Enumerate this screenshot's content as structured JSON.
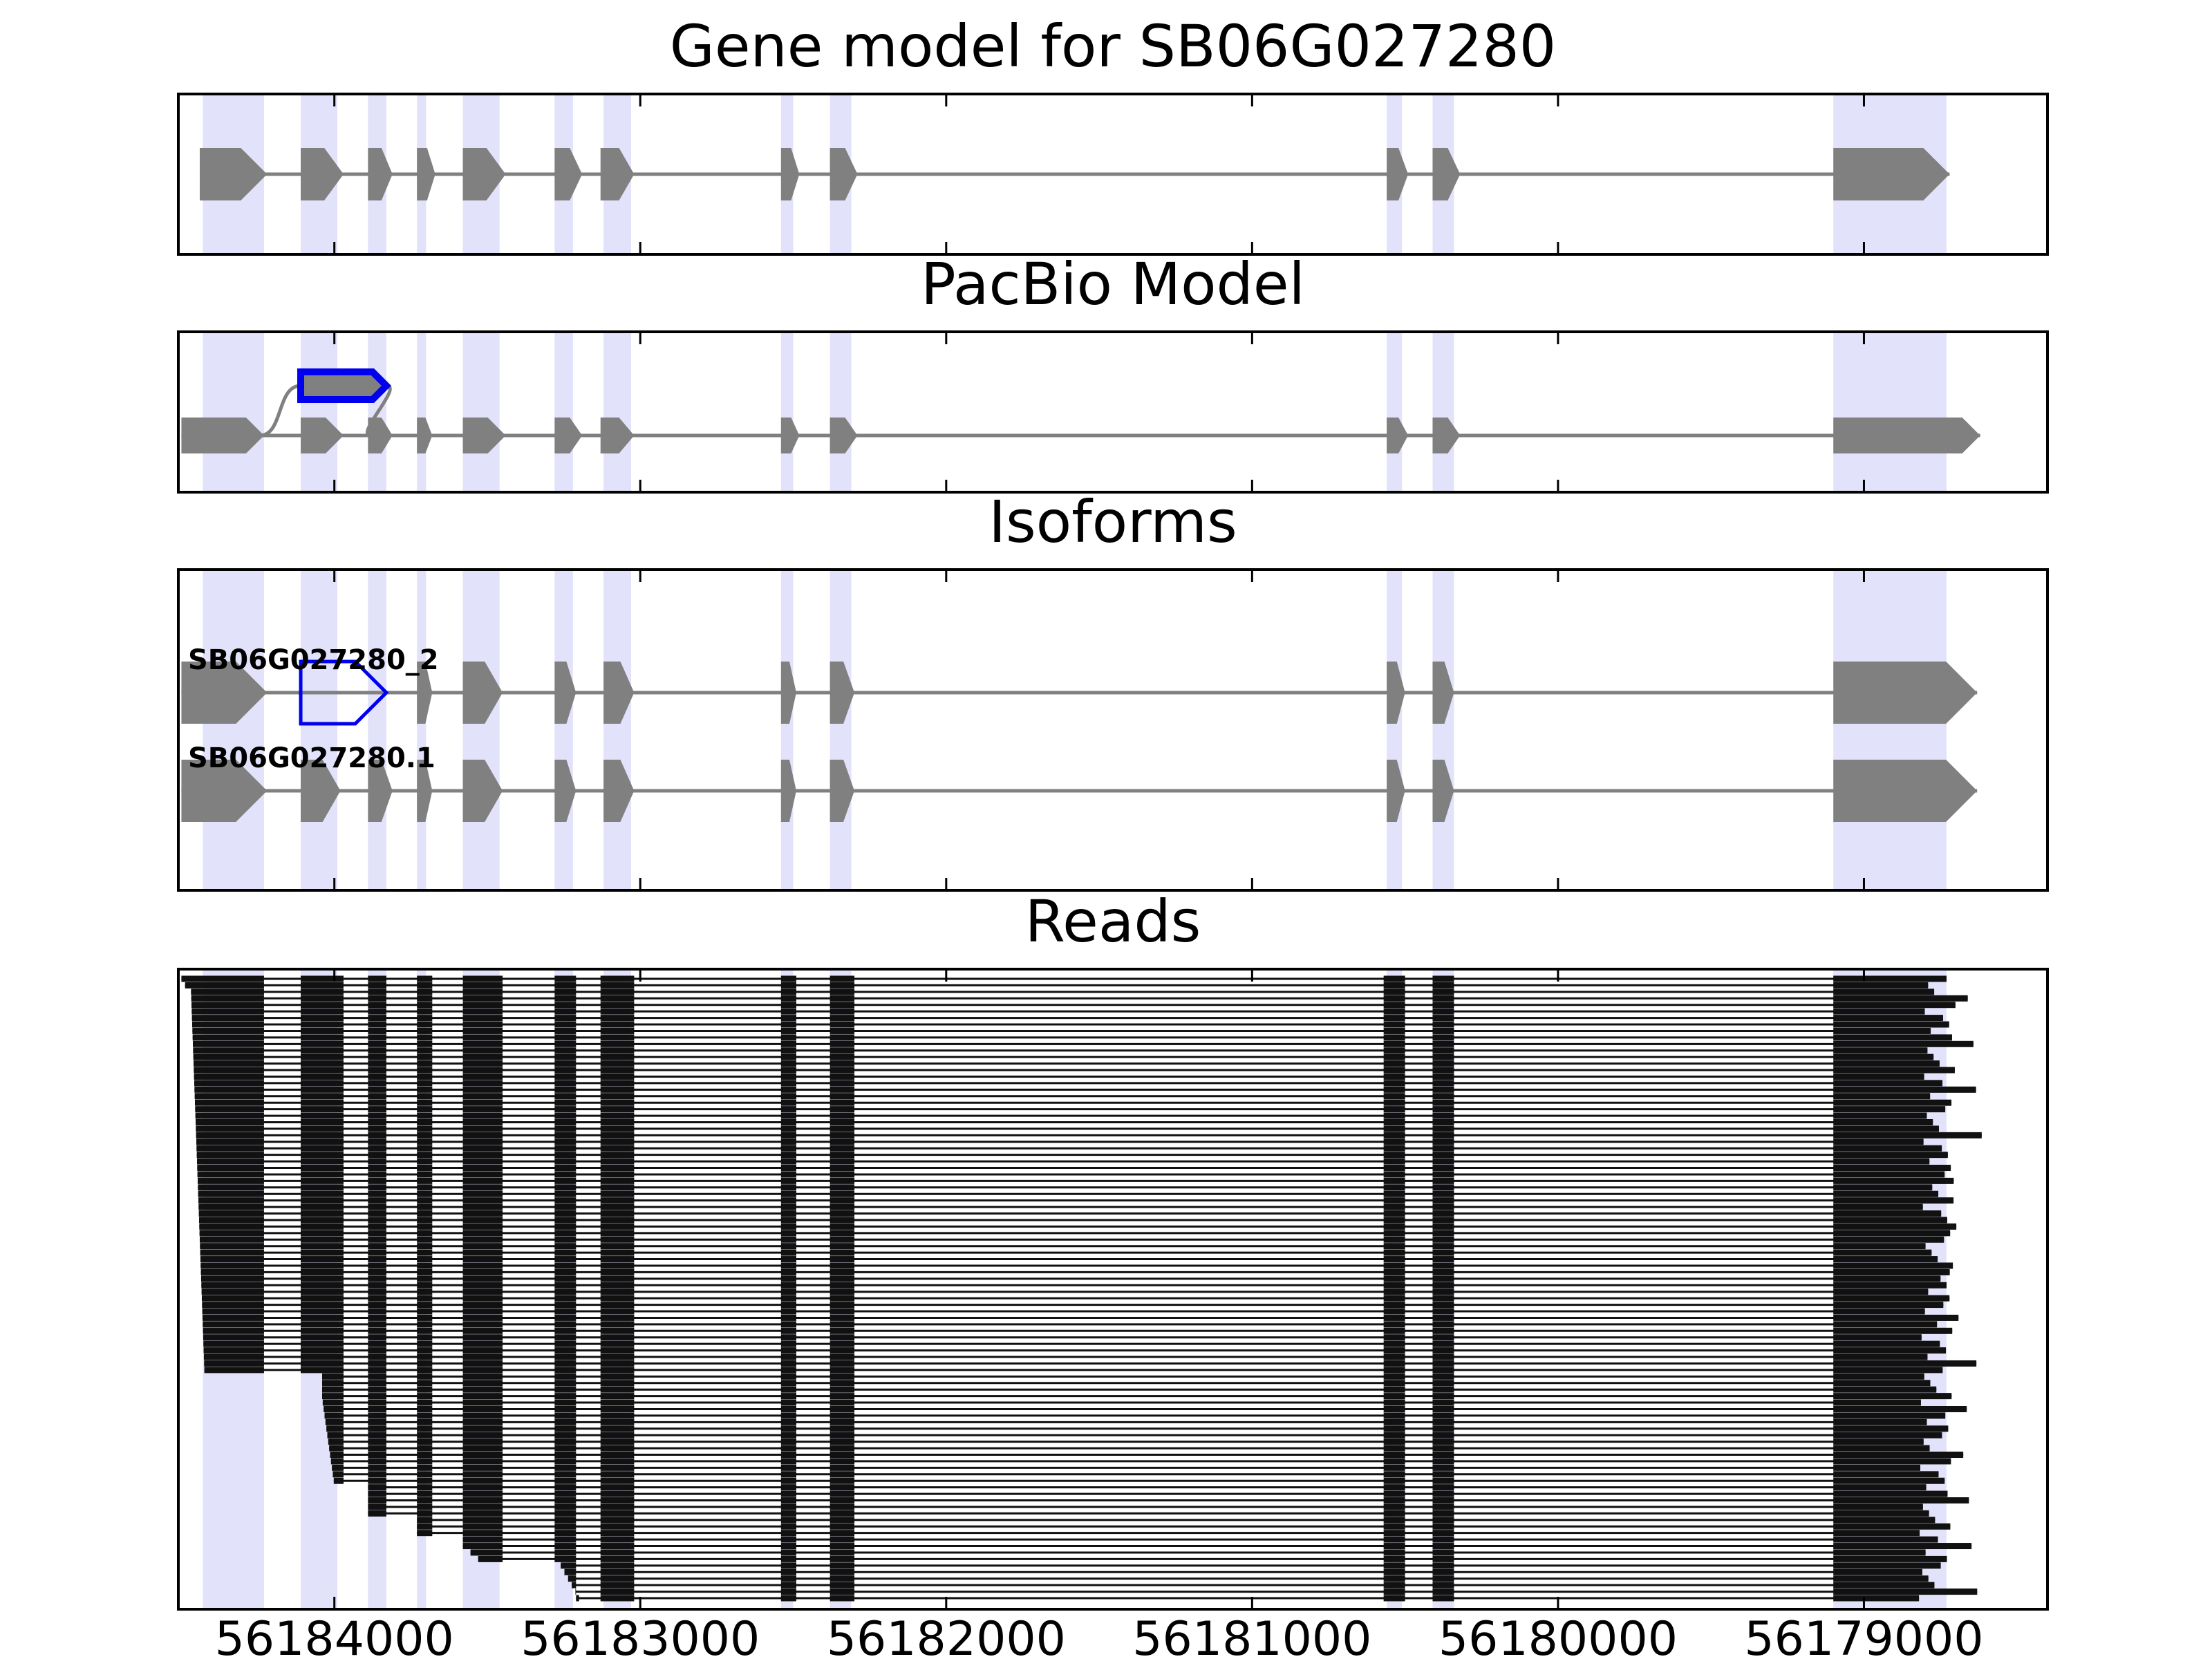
{
  "chart_data": {
    "type": "gene-track",
    "panels": [
      {
        "id": "gene-model",
        "title": "Gene model for SB06G027280"
      },
      {
        "id": "pacbio",
        "title": "PacBio Model"
      },
      {
        "id": "isoforms",
        "title": "Isoforms"
      },
      {
        "id": "reads",
        "title": "Reads"
      }
    ],
    "x_axis": {
      "direction": "descending",
      "xlim": [
        56184510,
        56178400
      ],
      "ticks": [
        56184000,
        56183000,
        56182000,
        56181000,
        56180000,
        56179000
      ],
      "tick_labels": [
        "56184000",
        "56183000",
        "56182000",
        "56181000",
        "56180000",
        "56179000"
      ]
    },
    "exon_regions": [
      [
        56184430,
        56184230
      ],
      [
        56184110,
        56183990
      ],
      [
        56183890,
        56183830
      ],
      [
        56183730,
        56183700
      ],
      [
        56183580,
        56183460
      ],
      [
        56183280,
        56183220
      ],
      [
        56183120,
        56183030
      ],
      [
        56182540,
        56182500
      ],
      [
        56182380,
        56182310
      ],
      [
        56180560,
        56180510
      ],
      [
        56180410,
        56180340
      ],
      [
        56179100,
        56178730
      ]
    ],
    "gene_model": {
      "exons": [
        [
          56184440,
          56184220
        ],
        [
          56184110,
          56183970
        ],
        [
          56183890,
          56183810
        ],
        [
          56183730,
          56183670
        ],
        [
          56183580,
          56183440
        ],
        [
          56183280,
          56183190
        ],
        [
          56183130,
          56183020
        ],
        [
          56182540,
          56182480
        ],
        [
          56182380,
          56182290
        ],
        [
          56180560,
          56180490
        ],
        [
          56180410,
          56180320
        ],
        [
          56179100,
          56178720
        ]
      ]
    },
    "pacbio_model": {
      "exons": [
        [
          56184500,
          56184230
        ],
        [
          56184110,
          56183970
        ],
        [
          56183890,
          56183810
        ],
        [
          56183730,
          56183680
        ],
        [
          56183580,
          56183440
        ],
        [
          56183280,
          56183190
        ],
        [
          56183130,
          56183020
        ],
        [
          56182540,
          56182480
        ],
        [
          56182380,
          56182290
        ],
        [
          56180560,
          56180490
        ],
        [
          56180410,
          56180320
        ],
        [
          56179100,
          56178620
        ]
      ],
      "highlight_exon": [
        56184110,
        56183830
      ],
      "highlight_color": "#0000ee"
    },
    "isoforms": [
      {
        "name": "SB06G027280_2",
        "exons": [
          [
            56184500,
            56184220
          ],
          [
            56184110,
            56183830
          ],
          [
            56183730,
            56183680
          ],
          [
            56183580,
            56183450
          ],
          [
            56183280,
            56183210
          ],
          [
            56183120,
            56183020
          ],
          [
            56182540,
            56182490
          ],
          [
            56182380,
            56182300
          ],
          [
            56180560,
            56180500
          ],
          [
            56180410,
            56180340
          ],
          [
            56179100,
            56178630
          ]
        ],
        "highlight_exon_index": 1
      },
      {
        "name": "SB06G027280.1",
        "exons": [
          [
            56184500,
            56184220
          ],
          [
            56184110,
            56183980
          ],
          [
            56183890,
            56183810
          ],
          [
            56183730,
            56183680
          ],
          [
            56183580,
            56183450
          ],
          [
            56183280,
            56183210
          ],
          [
            56183120,
            56183020
          ],
          [
            56182540,
            56182490
          ],
          [
            56182380,
            56182300
          ],
          [
            56180560,
            56180500
          ],
          [
            56180410,
            56180340
          ],
          [
            56179100,
            56178630
          ]
        ]
      }
    ],
    "reads": {
      "count": 96,
      "color": "#111111",
      "common_exons": [
        [
          56183280,
          56183210
        ],
        [
          56183130,
          56183020
        ],
        [
          56182540,
          56182490
        ],
        [
          56182380,
          56182300
        ],
        [
          56180570,
          56180500
        ],
        [
          56180410,
          56180340
        ]
      ],
      "last_exon_start": 56179100,
      "skip_exon_start_pattern": [
        56179100,
        56179100,
        56179100,
        56179080,
        56179060,
        56179040,
        56179030
      ]
    },
    "colors": {
      "exon_region": "#e2e2fb",
      "exon": "#808080",
      "intron": "#808080",
      "highlight": "#0000ee",
      "read": "#111111",
      "frame": "#000000"
    }
  }
}
